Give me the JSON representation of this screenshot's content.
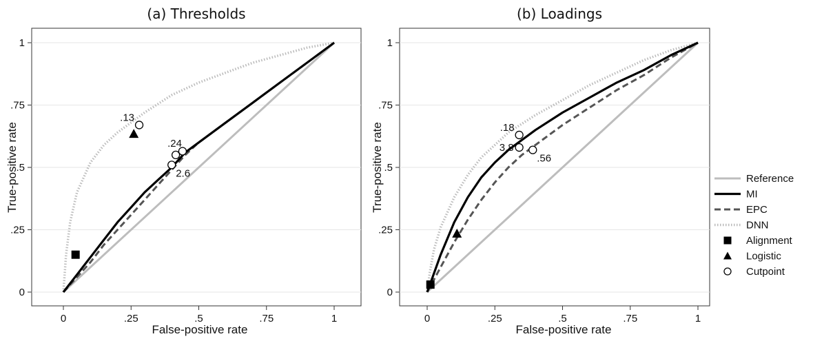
{
  "legend": {
    "items": [
      {
        "key": "reference",
        "label": "Reference",
        "kind": "line",
        "color": "#bdbdbd",
        "dash": "solid"
      },
      {
        "key": "mi",
        "label": "MI",
        "kind": "line",
        "color": "#000000",
        "dash": "solid"
      },
      {
        "key": "epc",
        "label": "EPC",
        "kind": "line",
        "color": "#555555",
        "dash": "dash"
      },
      {
        "key": "dnn",
        "label": "DNN",
        "kind": "line",
        "color": "#bbbbbb",
        "dash": "dot"
      },
      {
        "key": "alignment",
        "label": "Alignment",
        "kind": "marker",
        "marker": "square"
      },
      {
        "key": "logistic",
        "label": "Logistic",
        "kind": "marker",
        "marker": "triangle"
      },
      {
        "key": "cutpoint",
        "label": "Cutpoint",
        "kind": "marker",
        "marker": "circle"
      }
    ]
  },
  "chart_data": [
    {
      "type": "line",
      "title": "(a) Thresholds",
      "xlabel": "False-positive rate",
      "ylabel": "True-positive rate",
      "xlim": [
        0,
        1
      ],
      "ylim": [
        0,
        1
      ],
      "xticks": [
        0,
        0.25,
        0.5,
        0.75,
        1
      ],
      "xtick_labels": [
        "0",
        ".25",
        ".5",
        ".75",
        "1"
      ],
      "yticks": [
        0,
        0.25,
        0.5,
        0.75,
        1
      ],
      "ytick_labels": [
        "0",
        ".25",
        ".5",
        ".75",
        "1"
      ],
      "grid": "horizontal",
      "series": [
        {
          "key": "reference",
          "x": [
            0,
            1
          ],
          "y": [
            0,
            1
          ]
        },
        {
          "key": "mi",
          "x": [
            0,
            0.05,
            0.1,
            0.15,
            0.2,
            0.25,
            0.3,
            0.35,
            0.4,
            0.45,
            0.5,
            0.6,
            0.7,
            0.8,
            0.9,
            1.0
          ],
          "y": [
            0,
            0.07,
            0.14,
            0.21,
            0.28,
            0.34,
            0.4,
            0.45,
            0.5,
            0.56,
            0.6,
            0.68,
            0.76,
            0.84,
            0.92,
            1.0
          ]
        },
        {
          "key": "epc",
          "x": [
            0,
            0.05,
            0.1,
            0.15,
            0.2,
            0.25,
            0.3,
            0.35,
            0.4,
            0.45,
            0.5,
            0.6,
            0.7,
            0.8,
            0.9,
            1.0
          ],
          "y": [
            0,
            0.06,
            0.12,
            0.19,
            0.25,
            0.31,
            0.37,
            0.43,
            0.49,
            0.55,
            0.6,
            0.68,
            0.76,
            0.84,
            0.92,
            1.0
          ]
        },
        {
          "key": "dnn",
          "x": [
            0,
            0.01,
            0.025,
            0.05,
            0.1,
            0.15,
            0.2,
            0.25,
            0.3,
            0.4,
            0.5,
            0.6,
            0.7,
            0.8,
            0.9,
            1.0
          ],
          "y": [
            0,
            0.15,
            0.28,
            0.4,
            0.52,
            0.59,
            0.64,
            0.68,
            0.72,
            0.79,
            0.84,
            0.88,
            0.92,
            0.95,
            0.98,
            1.0
          ]
        }
      ],
      "markers": [
        {
          "key": "alignment",
          "x": 0.045,
          "y": 0.15
        },
        {
          "key": "logistic",
          "x": 0.26,
          "y": 0.635
        }
      ],
      "cutpoints": [
        {
          "x": 0.28,
          "y": 0.67,
          "label": ".13",
          "anchor": "upper-left"
        },
        {
          "x": 0.415,
          "y": 0.55,
          "label": ".24",
          "anchor": "above"
        },
        {
          "x": 0.44,
          "y": 0.565,
          "label": "",
          "anchor": "none"
        },
        {
          "x": 0.4,
          "y": 0.51,
          "label": "2.6",
          "anchor": "below-right"
        }
      ]
    },
    {
      "type": "line",
      "title": "(b) Loadings",
      "xlabel": "False-positive rate",
      "ylabel": "True-positive rate",
      "xlim": [
        0,
        1
      ],
      "ylim": [
        0,
        1
      ],
      "xticks": [
        0,
        0.25,
        0.5,
        0.75,
        1
      ],
      "xtick_labels": [
        "0",
        ".25",
        ".5",
        ".75",
        "1"
      ],
      "yticks": [
        0,
        0.25,
        0.5,
        0.75,
        1
      ],
      "ytick_labels": [
        "0",
        ".25",
        ".5",
        ".75",
        "1"
      ],
      "grid": "horizontal",
      "series": [
        {
          "key": "reference",
          "x": [
            0,
            1
          ],
          "y": [
            0,
            1
          ]
        },
        {
          "key": "mi",
          "x": [
            0,
            0.02,
            0.05,
            0.1,
            0.15,
            0.2,
            0.25,
            0.3,
            0.35,
            0.4,
            0.5,
            0.6,
            0.7,
            0.8,
            0.9,
            1.0
          ],
          "y": [
            0,
            0.06,
            0.15,
            0.28,
            0.38,
            0.46,
            0.52,
            0.57,
            0.61,
            0.65,
            0.72,
            0.78,
            0.84,
            0.89,
            0.95,
            1.0
          ]
        },
        {
          "key": "epc",
          "x": [
            0,
            0.02,
            0.05,
            0.1,
            0.15,
            0.2,
            0.25,
            0.3,
            0.35,
            0.4,
            0.5,
            0.6,
            0.7,
            0.8,
            0.9,
            1.0
          ],
          "y": [
            0,
            0.04,
            0.1,
            0.2,
            0.29,
            0.37,
            0.44,
            0.5,
            0.55,
            0.59,
            0.67,
            0.74,
            0.81,
            0.87,
            0.94,
            1.0
          ]
        },
        {
          "key": "dnn",
          "x": [
            0,
            0.01,
            0.025,
            0.05,
            0.1,
            0.15,
            0.2,
            0.25,
            0.3,
            0.4,
            0.5,
            0.6,
            0.7,
            0.8,
            0.9,
            1.0
          ],
          "y": [
            0,
            0.08,
            0.17,
            0.26,
            0.38,
            0.47,
            0.54,
            0.59,
            0.64,
            0.71,
            0.77,
            0.83,
            0.88,
            0.93,
            0.97,
            1.0
          ]
        }
      ],
      "markers": [
        {
          "key": "alignment",
          "x": 0.012,
          "y": 0.03
        },
        {
          "key": "logistic",
          "x": 0.11,
          "y": 0.235
        }
      ],
      "cutpoints": [
        {
          "x": 0.34,
          "y": 0.63,
          "label": ".18",
          "anchor": "upper-left"
        },
        {
          "x": 0.34,
          "y": 0.58,
          "label": "3.8",
          "anchor": "left"
        },
        {
          "x": 0.39,
          "y": 0.57,
          "label": ".56",
          "anchor": "below-right"
        }
      ]
    }
  ]
}
